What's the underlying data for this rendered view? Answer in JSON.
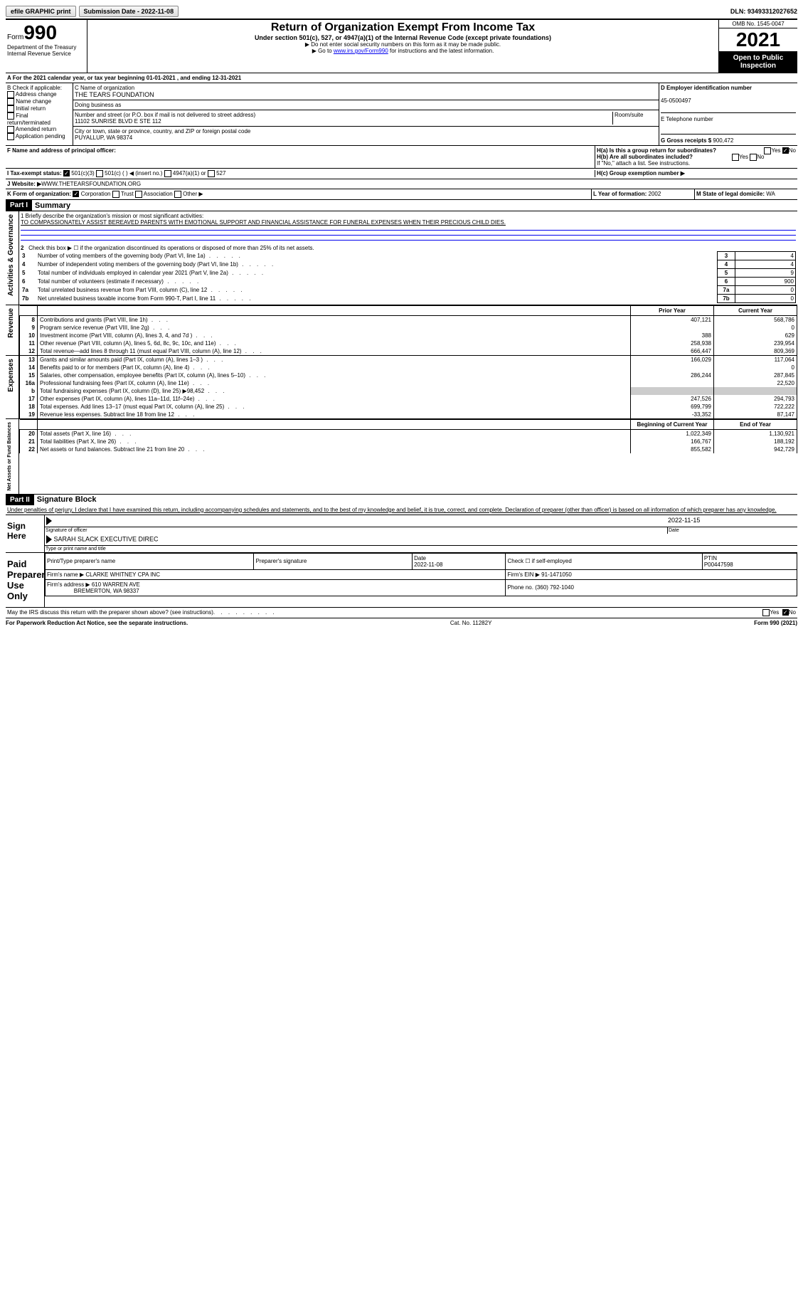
{
  "top": {
    "efile": "efile GRAPHIC print",
    "submission": "Submission Date - 2022-11-08",
    "dln": "DLN: 93493312027652"
  },
  "header": {
    "form": "Form",
    "num": "990",
    "title": "Return of Organization Exempt From Income Tax",
    "sub": "Under section 501(c), 527, or 4947(a)(1) of the Internal Revenue Code (except private foundations)",
    "inst1": "▶ Do not enter social security numbers on this form as it may be made public.",
    "inst2": "▶ Go to ",
    "link": "www.irs.gov/Form990",
    "inst3": " for instructions and the latest information.",
    "dept": "Department of the Treasury Internal Revenue Service",
    "omb": "OMB No. 1545-0047",
    "year": "2021",
    "open": "Open to Public Inspection"
  },
  "lineA": "A For the 2021 calendar year, or tax year beginning 01-01-2021    , and ending 12-31-2021",
  "boxB": {
    "title": "B Check if applicable:",
    "opts": [
      "Address change",
      "Name change",
      "Initial return",
      "Final return/terminated",
      "Amended return",
      "Application pending"
    ]
  },
  "boxC": {
    "label": "C Name of organization",
    "name": "THE TEARS FOUNDATION",
    "dba": "Doing business as",
    "street_label": "Number and street (or P.O. box if mail is not delivered to street address)",
    "room": "Room/suite",
    "street": "11102 SUNRISE BLVD E STE 112",
    "city_label": "City or town, state or province, country, and ZIP or foreign postal code",
    "city": "PUYALLUP, WA  98374"
  },
  "boxD": {
    "label": "D Employer identification number",
    "val": "45-0500497"
  },
  "boxE": {
    "label": "E Telephone number"
  },
  "boxG": {
    "label": "G Gross receipts $ ",
    "val": "900,472"
  },
  "boxF": "F  Name and address of principal officer:",
  "boxH": {
    "a": "H(a)  Is this a group return for subordinates?",
    "b": "H(b)  Are all subordinates included?",
    "note": "If \"No,\" attach a list. See instructions.",
    "c": "H(c)  Group exemption number ▶"
  },
  "taxexempt": {
    "label": "I   Tax-exempt status:",
    "c3": "501(c)(3)",
    "c": "501(c) (  ) ◀ (insert no.)",
    "a4947": "4947(a)(1) or",
    "s527": "527"
  },
  "website": {
    "label": "J   Website: ▶",
    "val": "  WWW.THETEARSFOUNDATION.ORG"
  },
  "lineK": {
    "label": "K Form of organization:",
    "corp": "Corporation",
    "trust": "Trust",
    "assoc": "Association",
    "other": "Other ▶"
  },
  "lineL": {
    "label": "L Year of formation: ",
    "val": "2002"
  },
  "lineM": {
    "label": "M State of legal domicile: ",
    "val": "WA"
  },
  "part1": {
    "bar": "Part I",
    "title": "Summary"
  },
  "mission": {
    "l1": "1   Briefly describe the organization's mission or most significant activities:",
    "text": "TO COMPASSIONATELY ASSIST BEREAVED PARENTS WITH EMOTIONAL SUPPORT AND FINANCIAL ASSISTANCE FOR FUNERAL EXPENSES WHEN THEIR PRECIOUS CHILD DIES."
  },
  "gov": {
    "l2": "Check this box ▶ ☐  if the organization discontinued its operations or disposed of more than 25% of its net assets.",
    "rows": [
      {
        "n": "3",
        "t": "Number of voting members of the governing body (Part VI, line 1a)",
        "v": "4"
      },
      {
        "n": "4",
        "t": "Number of independent voting members of the governing body (Part VI, line 1b)",
        "v": "4"
      },
      {
        "n": "5",
        "t": "Total number of individuals employed in calendar year 2021 (Part V, line 2a)",
        "v": "9"
      },
      {
        "n": "6",
        "t": "Total number of volunteers (estimate if necessary)",
        "v": "900"
      },
      {
        "n": "7a",
        "t": "Total unrelated business revenue from Part VIII, column (C), line 12",
        "v": "0"
      },
      {
        "n": "7b",
        "t": "Net unrelated business taxable income from Form 990-T, Part I, line 11",
        "v": "0"
      }
    ]
  },
  "hdr": {
    "prior": "Prior Year",
    "curr": "Current Year"
  },
  "revenue": [
    {
      "n": "8",
      "t": "Contributions and grants (Part VIII, line 1h)",
      "p": "407,121",
      "c": "568,786"
    },
    {
      "n": "9",
      "t": "Program service revenue (Part VIII, line 2g)",
      "p": "",
      "c": "0"
    },
    {
      "n": "10",
      "t": "Investment income (Part VIII, column (A), lines 3, 4, and 7d )",
      "p": "388",
      "c": "629"
    },
    {
      "n": "11",
      "t": "Other revenue (Part VIII, column (A), lines 5, 6d, 8c, 9c, 10c, and 11e)",
      "p": "258,938",
      "c": "239,954"
    },
    {
      "n": "12",
      "t": "Total revenue—add lines 8 through 11 (must equal Part VIII, column (A), line 12)",
      "p": "666,447",
      "c": "809,369"
    }
  ],
  "expenses": [
    {
      "n": "13",
      "t": "Grants and similar amounts paid (Part IX, column (A), lines 1–3 )",
      "p": "166,029",
      "c": "117,064"
    },
    {
      "n": "14",
      "t": "Benefits paid to or for members (Part IX, column (A), line 4)",
      "p": "",
      "c": "0"
    },
    {
      "n": "15",
      "t": "Salaries, other compensation, employee benefits (Part IX, column (A), lines 5–10)",
      "p": "286,244",
      "c": "287,845"
    },
    {
      "n": "16a",
      "t": "Professional fundraising fees (Part IX, column (A), line 11e)",
      "p": "",
      "c": "22,520"
    },
    {
      "n": "b",
      "t": "Total fundraising expenses (Part IX, column (D), line 25) ▶98,452",
      "p": "shade",
      "c": "shade"
    },
    {
      "n": "17",
      "t": "Other expenses (Part IX, column (A), lines 11a–11d, 11f–24e)",
      "p": "247,526",
      "c": "294,793"
    },
    {
      "n": "18",
      "t": "Total expenses. Add lines 13–17 (must equal Part IX, column (A), line 25)",
      "p": "699,799",
      "c": "722,222"
    },
    {
      "n": "19",
      "t": "Revenue less expenses. Subtract line 18 from line 12",
      "p": "-33,352",
      "c": "87,147"
    }
  ],
  "nethdr": {
    "beg": "Beginning of Current Year",
    "end": "End of Year"
  },
  "net": [
    {
      "n": "20",
      "t": "Total assets (Part X, line 16)",
      "p": "1,022,349",
      "c": "1,130,921"
    },
    {
      "n": "21",
      "t": "Total liabilities (Part X, line 26)",
      "p": "166,767",
      "c": "188,192"
    },
    {
      "n": "22",
      "t": "Net assets or fund balances. Subtract line 21 from line 20",
      "p": "855,582",
      "c": "942,729"
    }
  ],
  "part2": {
    "bar": "Part II",
    "title": "Signature Block"
  },
  "perjury": "Under penalties of perjury, I declare that I have examined this return, including accompanying schedules and statements, and to the best of my knowledge and belief, it is true, correct, and complete. Declaration of preparer (other than officer) is based on all information of which preparer has any knowledge.",
  "sign": {
    "here": "Sign Here",
    "date": "2022-11-15",
    "sig": "Signature of officer",
    "datel": "Date",
    "name": "SARAH SLACK  EXECUTIVE DIREC",
    "namel": "Type or print name and title"
  },
  "prep": {
    "title": "Paid Preparer Use Only",
    "h1": "Print/Type preparer's name",
    "h2": "Preparer's signature",
    "h3": "Date",
    "dateval": "2022-11-08",
    "h4": "Check ☐ if self-employed",
    "h5": "PTIN",
    "ptin": "P00447598",
    "firm": "Firm's name   ▶",
    "firmval": "CLARKE WHITNEY CPA INC",
    "ein": "Firm's EIN ▶",
    "einval": "91-1471050",
    "addr": "Firm's address ▶",
    "addrval": "610 WARREN AVE",
    "city": "BREMERTON, WA  98337",
    "phone": "Phone no. ",
    "phoneval": "(360) 792-1040"
  },
  "discuss": "May the IRS discuss this return with the preparer shown above? (see instructions)",
  "footer": {
    "l": "For Paperwork Reduction Act Notice, see the separate instructions.",
    "c": "Cat. No. 11282Y",
    "r": "Form 990 (2021)"
  },
  "yn": {
    "yes": "Yes",
    "no": "No"
  },
  "sidelabels": {
    "ag": "Activities & Governance",
    "rev": "Revenue",
    "exp": "Expenses",
    "net": "Net Assets or Fund Balances"
  }
}
